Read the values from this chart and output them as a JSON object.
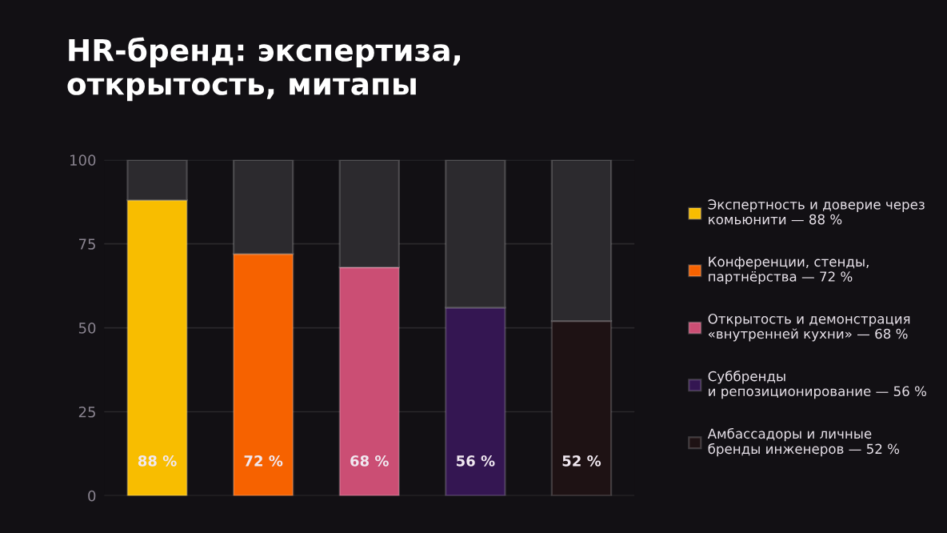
{
  "chart_data": {
    "type": "bar",
    "title": "HR-бренд: экспертиза,\nоткрытость, митапы",
    "categories": [
      null,
      null,
      null,
      null,
      null
    ],
    "stacked": true,
    "series": [
      {
        "name": "Экспертность и доверие через\nкомьюнити — 88 %",
        "color": "#f8bd00",
        "values": [
          88,
          null,
          null,
          null,
          null
        ],
        "value_labels": [
          "88 %",
          null,
          null,
          null,
          null
        ]
      },
      {
        "name": "Конференции, стенды,\nпартнёрства — 72 %",
        "color": "#f66200",
        "values": [
          null,
          72,
          null,
          null,
          null
        ],
        "value_labels": [
          null,
          "72 %",
          null,
          null,
          null
        ]
      },
      {
        "name": "Открытость и демонстрация\n«внутренней кухни» — 68 %",
        "color": "#cb4e74",
        "values": [
          null,
          null,
          68,
          null,
          null
        ],
        "value_labels": [
          null,
          null,
          "68 %",
          null,
          null
        ]
      },
      {
        "name": "Суббренды\nи репозиционирование — 56 %",
        "color": "#341652",
        "values": [
          null,
          null,
          null,
          56,
          null
        ],
        "value_labels": [
          null,
          null,
          null,
          "56 %",
          null
        ]
      },
      {
        "name": "Амбассадоры и личные\nбренды инженеров — 52 %",
        "color": "#1e1214",
        "values": [
          null,
          null,
          null,
          null,
          52
        ],
        "value_labels": [
          null,
          null,
          null,
          null,
          "52 %"
        ]
      },
      {
        "color": "#2c2a2e",
        "values": [
          12,
          28,
          32,
          44,
          48
        ]
      }
    ],
    "ylim": [
      0,
      100
    ],
    "yticks": [
      0,
      25,
      50,
      75,
      100
    ],
    "grid": "y",
    "legend": "right",
    "tick_labels": "y"
  }
}
